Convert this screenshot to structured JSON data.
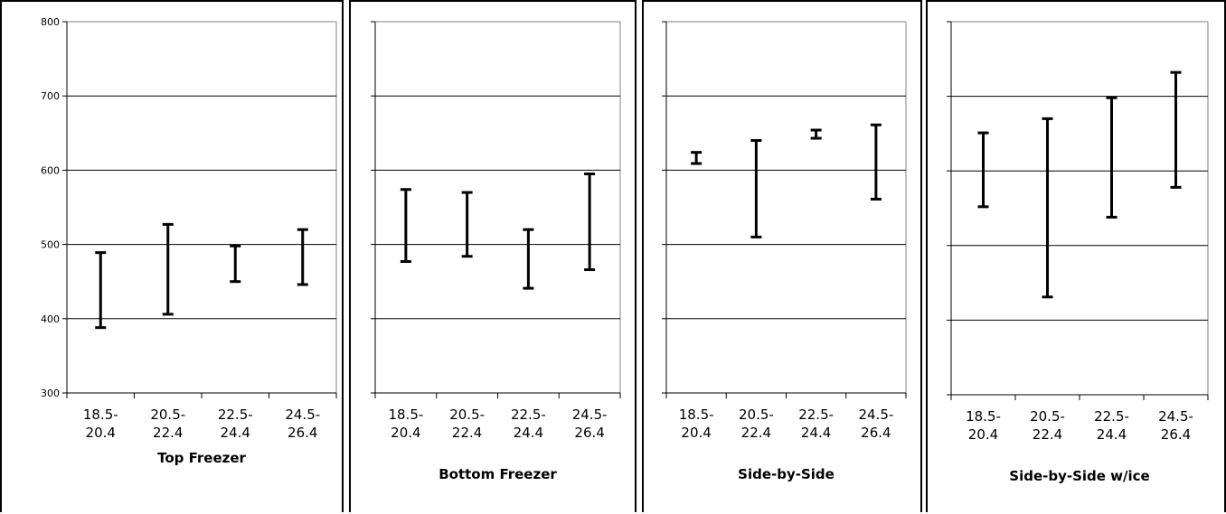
{
  "chart_data": [
    {
      "type": "error_bar",
      "title": "Top Freezer",
      "categories": [
        [
          "18.5-",
          "20.4"
        ],
        [
          "20.5-",
          "22.4"
        ],
        [
          "22.5-",
          "24.4"
        ],
        [
          "24.5-",
          "26.4"
        ]
      ],
      "ranges": [
        [
          388,
          489
        ],
        [
          406,
          527
        ],
        [
          450,
          498
        ],
        [
          446,
          520
        ]
      ],
      "ylim": [
        300,
        800
      ],
      "yticks": [
        300,
        400,
        500,
        600,
        700,
        800
      ],
      "show_y_labels": true,
      "grid": true
    },
    {
      "type": "error_bar",
      "title": "Bottom Freezer",
      "categories": [
        [
          "18.5-",
          "20.4"
        ],
        [
          "20.5-",
          "22.4"
        ],
        [
          "22.5-",
          "24.4"
        ],
        [
          "24.5-",
          "26.4"
        ]
      ],
      "ranges": [
        [
          477,
          574
        ],
        [
          484,
          570
        ],
        [
          441,
          520
        ],
        [
          466,
          595
        ]
      ],
      "ylim": [
        300,
        800
      ],
      "yticks": [
        300,
        400,
        500,
        600,
        700,
        800
      ],
      "show_y_labels": false,
      "grid": true
    },
    {
      "type": "error_bar",
      "title": "Side-by-Side",
      "categories": [
        [
          "18.5-",
          "20.4"
        ],
        [
          "20.5-",
          "22.4"
        ],
        [
          "22.5-",
          "24.4"
        ],
        [
          "24.5-",
          "26.4"
        ]
      ],
      "ranges": [
        [
          609,
          624
        ],
        [
          510,
          640
        ],
        [
          643,
          654
        ],
        [
          561,
          661
        ]
      ],
      "ylim": [
        300,
        800
      ],
      "yticks": [
        300,
        400,
        500,
        600,
        700,
        800
      ],
      "show_y_labels": false,
      "grid": true
    },
    {
      "type": "error_bar",
      "title": "Side-by-Side w/ice",
      "categories": [
        [
          "18.5-",
          "20.4"
        ],
        [
          "20.5-",
          "22.4"
        ],
        [
          "22.5-",
          "24.4"
        ],
        [
          "24.5-",
          "26.4"
        ]
      ],
      "ranges": [
        [
          552,
          651
        ],
        [
          431,
          670
        ],
        [
          538,
          698
        ],
        [
          578,
          732
        ]
      ],
      "ylim": [
        300,
        800
      ],
      "yticks": [
        300,
        400,
        500,
        600,
        700,
        800
      ],
      "show_y_labels": false,
      "grid": true
    }
  ]
}
